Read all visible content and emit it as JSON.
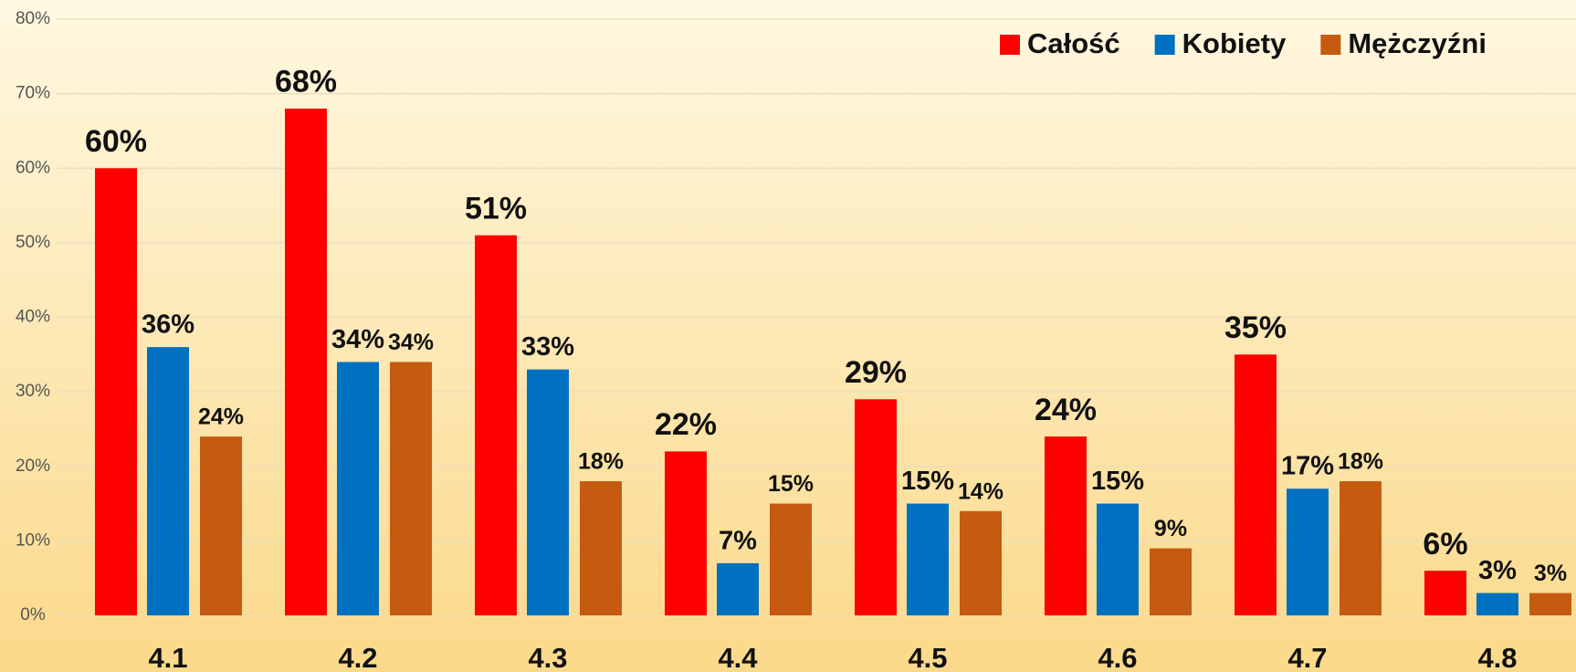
{
  "chart_data": {
    "type": "bar",
    "categories": [
      "4.1",
      "4.2",
      "4.3",
      "4.4",
      "4.5",
      "4.6",
      "4.7",
      "4.8"
    ],
    "series": [
      {
        "name": "Całość",
        "color": "#ff0000",
        "values": [
          60,
          68,
          51,
          22,
          29,
          24,
          35,
          6
        ],
        "value_labels": [
          "60%",
          "68%",
          "51%",
          "22%",
          "29%",
          "24%",
          "35%",
          "6%"
        ]
      },
      {
        "name": "Kobiety",
        "color": "#0070c0",
        "values": [
          36,
          34,
          33,
          7,
          15,
          15,
          17,
          3
        ],
        "value_labels": [
          "36%",
          "34%",
          "33%",
          "7%",
          "15%",
          "15%",
          "17%",
          "3%"
        ]
      },
      {
        "name": "Mężczyźni",
        "color": "#c55a11",
        "values": [
          24,
          34,
          18,
          15,
          14,
          9,
          18,
          3
        ],
        "value_labels": [
          "24%",
          "34%",
          "18%",
          "15%",
          "14%",
          "9%",
          "18%",
          "3%"
        ]
      }
    ],
    "ylim": [
      0,
      80
    ],
    "yticks": [
      {
        "value": 0,
        "label": "0%"
      },
      {
        "value": 10,
        "label": "10%"
      },
      {
        "value": 20,
        "label": "20%"
      },
      {
        "value": 30,
        "label": "30%"
      },
      {
        "value": 40,
        "label": "40%"
      },
      {
        "value": 50,
        "label": "50%"
      },
      {
        "value": 60,
        "label": "60%"
      },
      {
        "value": 70,
        "label": "70%"
      },
      {
        "value": 80,
        "label": "80%"
      }
    ],
    "grid": true,
    "legend": "top-right"
  }
}
